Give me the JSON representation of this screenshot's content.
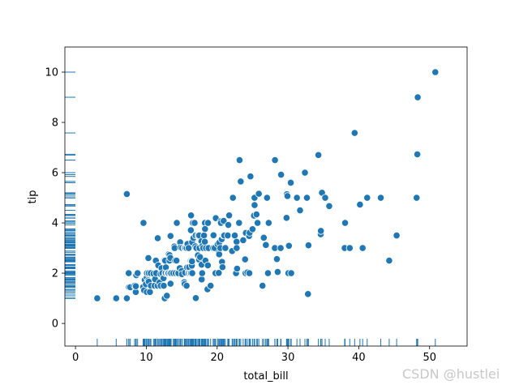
{
  "chart_data": {
    "type": "scatter",
    "title": "",
    "xlabel": "total_bill",
    "ylabel": "tip",
    "xlim": [
      -1.5,
      55.3
    ],
    "ylim": [
      -0.9,
      11.0
    ],
    "xticks": [
      0,
      10,
      20,
      30,
      40,
      50
    ],
    "yticks": [
      0,
      2,
      4,
      6,
      8,
      10
    ],
    "grid": false,
    "marginal_rug": true,
    "point_color": "#1f77b4",
    "point_edge_color": "#ffffff",
    "points": [
      [
        3.07,
        1.0
      ],
      [
        5.75,
        1.0
      ],
      [
        7.25,
        1.0
      ],
      [
        7.25,
        5.15
      ],
      [
        7.51,
        2.0
      ],
      [
        7.56,
        1.44
      ],
      [
        7.74,
        1.44
      ],
      [
        8.35,
        1.5
      ],
      [
        8.51,
        1.25
      ],
      [
        8.52,
        1.48
      ],
      [
        8.58,
        1.92
      ],
      [
        8.77,
        2.0
      ],
      [
        9.55,
        1.45
      ],
      [
        9.6,
        4.0
      ],
      [
        9.68,
        1.32
      ],
      [
        9.78,
        1.73
      ],
      [
        9.94,
        1.56
      ],
      [
        10.07,
        1.25
      ],
      [
        10.07,
        1.83
      ],
      [
        10.09,
        2.0
      ],
      [
        10.27,
        1.71
      ],
      [
        10.29,
        2.6
      ],
      [
        10.33,
        2.0
      ],
      [
        10.34,
        1.66
      ],
      [
        10.34,
        2.0
      ],
      [
        10.51,
        1.25
      ],
      [
        10.63,
        2.0
      ],
      [
        10.65,
        1.5
      ],
      [
        11.02,
        1.98
      ],
      [
        11.17,
        1.5
      ],
      [
        11.24,
        1.76
      ],
      [
        11.35,
        2.5
      ],
      [
        11.38,
        2.0
      ],
      [
        11.59,
        1.5
      ],
      [
        11.61,
        3.39
      ],
      [
        11.69,
        2.31
      ],
      [
        11.87,
        1.63
      ],
      [
        12.02,
        1.97
      ],
      [
        12.03,
        1.5
      ],
      [
        12.16,
        2.2
      ],
      [
        12.26,
        2.0
      ],
      [
        12.43,
        1.8
      ],
      [
        12.46,
        1.5
      ],
      [
        12.48,
        2.52
      ],
      [
        12.54,
        2.5
      ],
      [
        12.6,
        1.0
      ],
      [
        12.66,
        2.5
      ],
      [
        12.69,
        2.0
      ],
      [
        12.74,
        2.01
      ],
      [
        12.76,
        2.23
      ],
      [
        12.9,
        1.1
      ],
      [
        13.0,
        2.0
      ],
      [
        13.03,
        2.0
      ],
      [
        13.13,
        2.0
      ],
      [
        13.16,
        2.75
      ],
      [
        13.27,
        2.5
      ],
      [
        13.28,
        2.72
      ],
      [
        13.37,
        2.0
      ],
      [
        13.39,
        2.61
      ],
      [
        13.42,
        1.58
      ],
      [
        13.42,
        3.48
      ],
      [
        13.51,
        2.0
      ],
      [
        13.81,
        2.0
      ],
      [
        13.94,
        3.06
      ],
      [
        14.0,
        3.0
      ],
      [
        14.07,
        2.5
      ],
      [
        14.15,
        2.0
      ],
      [
        14.26,
        2.5
      ],
      [
        14.31,
        4.0
      ],
      [
        14.48,
        2.0
      ],
      [
        14.52,
        2.0
      ],
      [
        14.73,
        2.2
      ],
      [
        14.78,
        3.23
      ],
      [
        14.83,
        3.02
      ],
      [
        15.01,
        2.09
      ],
      [
        15.04,
        1.96
      ],
      [
        15.06,
        3.0
      ],
      [
        15.36,
        1.64
      ],
      [
        15.38,
        3.0
      ],
      [
        15.42,
        1.57
      ],
      [
        15.48,
        2.02
      ],
      [
        15.53,
        3.0
      ],
      [
        15.69,
        1.5
      ],
      [
        15.69,
        3.0
      ],
      [
        15.77,
        2.23
      ],
      [
        15.81,
        3.16
      ],
      [
        15.98,
        2.03
      ],
      [
        15.98,
        3.0
      ],
      [
        16.0,
        2.0
      ],
      [
        16.04,
        2.24
      ],
      [
        16.21,
        2.0
      ],
      [
        16.27,
        2.5
      ],
      [
        16.29,
        3.71
      ],
      [
        16.31,
        2.0
      ],
      [
        16.32,
        4.3
      ],
      [
        16.4,
        2.5
      ],
      [
        16.43,
        2.3
      ],
      [
        16.45,
        2.47
      ],
      [
        16.47,
        3.23
      ],
      [
        16.49,
        2.0
      ],
      [
        16.58,
        4.0
      ],
      [
        16.66,
        3.4
      ],
      [
        16.82,
        4.0
      ],
      [
        16.93,
        3.07
      ],
      [
        16.97,
        3.5
      ],
      [
        16.99,
        1.01
      ],
      [
        17.07,
        3.0
      ],
      [
        17.26,
        2.74
      ],
      [
        17.29,
        2.71
      ],
      [
        17.31,
        3.5
      ],
      [
        17.46,
        2.54
      ],
      [
        17.47,
        3.5
      ],
      [
        17.51,
        3.0
      ],
      [
        17.59,
        2.64
      ],
      [
        17.78,
        3.27
      ],
      [
        17.81,
        2.34
      ],
      [
        17.82,
        1.75
      ],
      [
        17.89,
        2.0
      ],
      [
        17.92,
        3.08
      ],
      [
        18.04,
        3.0
      ],
      [
        18.15,
        3.5
      ],
      [
        18.24,
        3.76
      ],
      [
        18.26,
        3.25
      ],
      [
        18.28,
        4.0
      ],
      [
        18.29,
        3.76
      ],
      [
        18.35,
        2.5
      ],
      [
        18.43,
        3.0
      ],
      [
        18.64,
        1.36
      ],
      [
        18.69,
        2.31
      ],
      [
        18.71,
        4.0
      ],
      [
        18.78,
        3.0
      ],
      [
        19.08,
        1.5
      ],
      [
        19.44,
        3.0
      ],
      [
        19.49,
        3.51
      ],
      [
        19.65,
        3.0
      ],
      [
        19.77,
        2.0
      ],
      [
        19.81,
        4.19
      ],
      [
        20.08,
        3.15
      ],
      [
        20.23,
        2.01
      ],
      [
        20.27,
        2.83
      ],
      [
        20.29,
        2.75
      ],
      [
        20.29,
        3.21
      ],
      [
        20.45,
        3.0
      ],
      [
        20.49,
        4.06
      ],
      [
        20.53,
        4.0
      ],
      [
        20.65,
        3.35
      ],
      [
        20.69,
        2.45
      ],
      [
        20.76,
        2.24
      ],
      [
        20.9,
        3.5
      ],
      [
        20.92,
        4.08
      ],
      [
        21.01,
        3.5
      ],
      [
        21.16,
        3.0
      ],
      [
        21.5,
        3.5
      ],
      [
        21.58,
        3.92
      ],
      [
        21.7,
        4.3
      ],
      [
        22.12,
        2.88
      ],
      [
        22.23,
        5.0
      ],
      [
        22.42,
        3.48
      ],
      [
        22.49,
        3.5
      ],
      [
        22.67,
        2.0
      ],
      [
        22.75,
        3.25
      ],
      [
        22.76,
        3.0
      ],
      [
        22.82,
        2.18
      ],
      [
        23.1,
        4.0
      ],
      [
        23.17,
        6.5
      ],
      [
        23.33,
        5.65
      ],
      [
        23.68,
        3.31
      ],
      [
        23.95,
        2.55
      ],
      [
        24.01,
        2.0
      ],
      [
        24.06,
        3.6
      ],
      [
        24.27,
        2.03
      ],
      [
        24.52,
        3.48
      ],
      [
        24.55,
        2.0
      ],
      [
        24.59,
        3.61
      ],
      [
        24.71,
        5.85
      ],
      [
        25.0,
        3.75
      ],
      [
        25.21,
        4.29
      ],
      [
        25.28,
        5.0
      ],
      [
        25.29,
        4.71
      ],
      [
        25.56,
        4.34
      ],
      [
        25.71,
        4.0
      ],
      [
        25.89,
        5.16
      ],
      [
        26.41,
        1.5
      ],
      [
        26.59,
        3.41
      ],
      [
        26.86,
        3.14
      ],
      [
        26.88,
        3.12
      ],
      [
        27.05,
        5.0
      ],
      [
        27.18,
        2.0
      ],
      [
        27.2,
        4.0
      ],
      [
        27.28,
        4.0
      ],
      [
        28.15,
        3.0
      ],
      [
        28.17,
        6.5
      ],
      [
        28.44,
        2.56
      ],
      [
        28.55,
        2.05
      ],
      [
        28.97,
        3.0
      ],
      [
        29.03,
        5.92
      ],
      [
        29.8,
        4.2
      ],
      [
        29.85,
        5.14
      ],
      [
        29.93,
        5.07
      ],
      [
        30.06,
        2.0
      ],
      [
        30.14,
        3.09
      ],
      [
        30.4,
        5.6
      ],
      [
        30.46,
        2.0
      ],
      [
        31.27,
        5.0
      ],
      [
        31.71,
        4.5
      ],
      [
        32.4,
        6.0
      ],
      [
        32.68,
        5.0
      ],
      [
        32.83,
        1.17
      ],
      [
        32.9,
        3.11
      ],
      [
        34.3,
        6.7
      ],
      [
        34.63,
        3.55
      ],
      [
        34.65,
        3.68
      ],
      [
        34.81,
        5.2
      ],
      [
        35.26,
        5.0
      ],
      [
        35.83,
        4.67
      ],
      [
        38.01,
        3.0
      ],
      [
        38.07,
        4.0
      ],
      [
        38.73,
        3.0
      ],
      [
        39.42,
        7.58
      ],
      [
        40.17,
        4.73
      ],
      [
        40.55,
        3.0
      ],
      [
        41.19,
        5.0
      ],
      [
        43.11,
        5.0
      ],
      [
        44.3,
        2.5
      ],
      [
        45.35,
        3.5
      ],
      [
        48.17,
        5.0
      ],
      [
        48.27,
        6.73
      ],
      [
        48.33,
        9.0
      ],
      [
        50.81,
        10.0
      ]
    ]
  },
  "watermark": "CSDN @hustlei"
}
